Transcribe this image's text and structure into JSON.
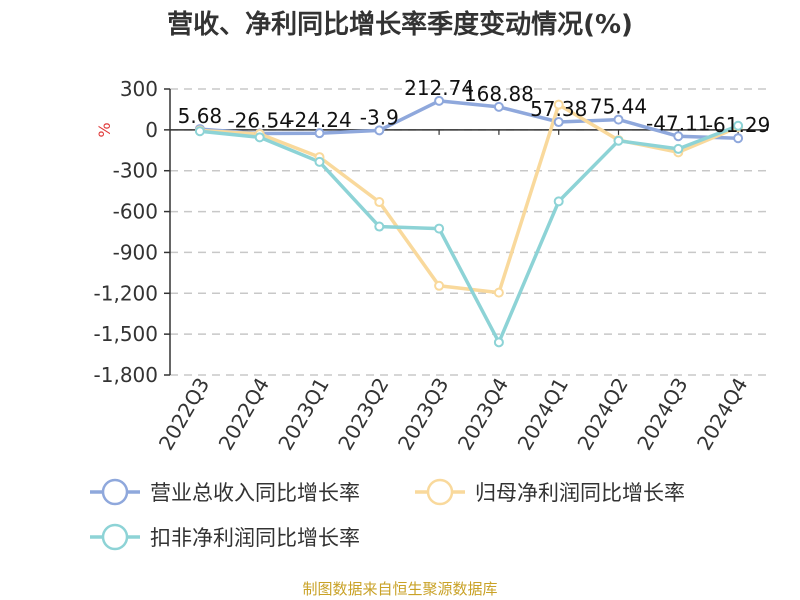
{
  "title": "营收、净利同比增长率季度变动情况(%)",
  "source": "制图数据来自恒生聚源数据库",
  "chart_data": {
    "type": "line",
    "title": "营收、净利同比增长率季度变动情况(%)",
    "unit_label": "%",
    "categories": [
      "2022Q3",
      "2022Q4",
      "2023Q1",
      "2023Q2",
      "2023Q3",
      "2023Q4",
      "2024Q1",
      "2024Q2",
      "2024Q3",
      "2024Q4"
    ],
    "ylim": [
      -1800,
      300
    ],
    "yticks": [
      300,
      0,
      -300,
      -600,
      -900,
      -1200,
      -1500,
      -1800
    ],
    "ytick_labels": [
      "300",
      "0",
      "-300",
      "-600",
      "-900",
      "-1,200",
      "-1,500",
      "-1,800"
    ],
    "grid": true,
    "legend_position": "bottom",
    "series": [
      {
        "name": "营业总收入同比增长率",
        "color": "#8fa8dc",
        "values": [
          5.68,
          -26.54,
          -24.24,
          -3.9,
          212.74,
          168.88,
          57.38,
          75.44,
          -47.11,
          -61.29
        ],
        "labels": [
          "5.68",
          "-26.54",
          "-24.24",
          "-3.9",
          "212.74",
          "168.88",
          "57.38",
          "75.44",
          "-47.11",
          "-61.29"
        ]
      },
      {
        "name": "归母净利润同比增长率",
        "color": "#f9d99c",
        "values": [
          -5,
          -30,
          -200,
          -530,
          -1145,
          -1195,
          185,
          -75,
          -165,
          20
        ],
        "labels": []
      },
      {
        "name": "扣非净利润同比增长率",
        "color": "#8dd3d6",
        "values": [
          -10,
          -55,
          -235,
          -710,
          -725,
          -1560,
          -525,
          -80,
          -140,
          30
        ],
        "labels": []
      }
    ]
  }
}
